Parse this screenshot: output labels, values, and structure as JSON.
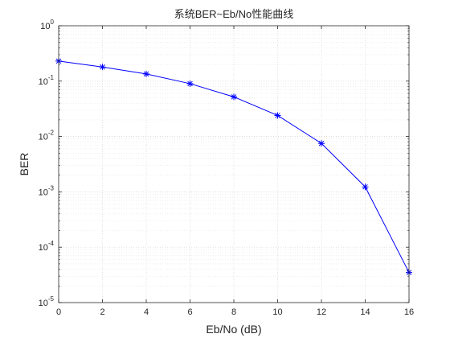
{
  "chart_data": {
    "type": "line",
    "title": "系统BER~Eb/No性能曲线",
    "xlabel": "Eb/No (dB)",
    "ylabel": "BER",
    "x": [
      0,
      2,
      4,
      6,
      8,
      10,
      12,
      14,
      16
    ],
    "y_scale": "log",
    "xlim": [
      0,
      16
    ],
    "ylim": [
      1e-05,
      1
    ],
    "x_ticks": [
      "0",
      "2",
      "4",
      "6",
      "8",
      "10",
      "12",
      "14",
      "16"
    ],
    "y_ticks": [
      {
        "base": "10",
        "exp": "-5"
      },
      {
        "base": "10",
        "exp": "-4"
      },
      {
        "base": "10",
        "exp": "-3"
      },
      {
        "base": "10",
        "exp": "-2"
      },
      {
        "base": "10",
        "exp": "-1"
      },
      {
        "base": "10",
        "exp": "0"
      }
    ],
    "grid": "on (major and minor, dotted)",
    "series": [
      {
        "color": "#0000ff",
        "marker": "asterisk",
        "values": [
          0.23,
          0.18,
          0.135,
          0.09,
          0.052,
          0.024,
          0.0075,
          0.00123,
          3.5e-05
        ]
      }
    ]
  }
}
